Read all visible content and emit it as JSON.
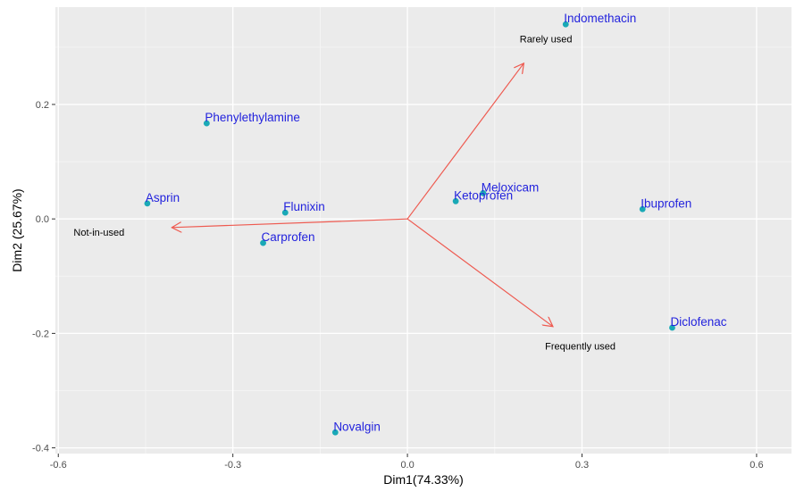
{
  "chart_data": {
    "type": "scatter",
    "xlabel": "Dim1(74.33%)",
    "ylabel": "Dim2 (25.67%)",
    "xlim": [
      -0.605,
      0.66
    ],
    "ylim": [
      -0.41,
      0.37
    ],
    "x_ticks": [
      -0.6,
      -0.3,
      0.0,
      0.3,
      0.6
    ],
    "x_tick_labels": [
      "-0.6",
      "-0.3",
      "0.0",
      "0.3",
      "0.6"
    ],
    "y_ticks": [
      -0.4,
      -0.2,
      0.0,
      0.2
    ],
    "y_tick_labels": [
      "-0.4",
      "-0.2",
      "0.0",
      "0.2"
    ],
    "grid": true,
    "point_color": "#1aa9b6",
    "label_color": "#2323dd",
    "arrow_color": "#ee5a50",
    "panel_color": "#ebebeb",
    "points": [
      {
        "label": "Indomethacin",
        "x": 0.272,
        "y": 0.34
      },
      {
        "label": "Phenylethylamine",
        "x": -0.345,
        "y": 0.167
      },
      {
        "label": "Asprin",
        "x": -0.447,
        "y": 0.027
      },
      {
        "label": "Flunixin",
        "x": -0.21,
        "y": 0.011
      },
      {
        "label": "Carprofen",
        "x": -0.248,
        "y": -0.042
      },
      {
        "label": "Meloxicam",
        "x": 0.13,
        "y": 0.045
      },
      {
        "label": "Ketoprofen",
        "x": 0.083,
        "y": 0.031
      },
      {
        "label": "Ibuprofen",
        "x": 0.404,
        "y": 0.017
      },
      {
        "label": "Diclofenac",
        "x": 0.455,
        "y": -0.19
      },
      {
        "label": "Novalgin",
        "x": -0.124,
        "y": -0.373
      }
    ],
    "vectors": [
      {
        "label": "Rarely used",
        "x": 0.2,
        "y": 0.272,
        "label_x": 0.238,
        "label_y": 0.315
      },
      {
        "label": "Not-in-used",
        "x": -0.405,
        "y": -0.015,
        "label_x": -0.53,
        "label_y": -0.023
      },
      {
        "label": "Frequently used",
        "x": 0.25,
        "y": -0.188,
        "label_x": 0.297,
        "label_y": -0.222
      }
    ]
  }
}
